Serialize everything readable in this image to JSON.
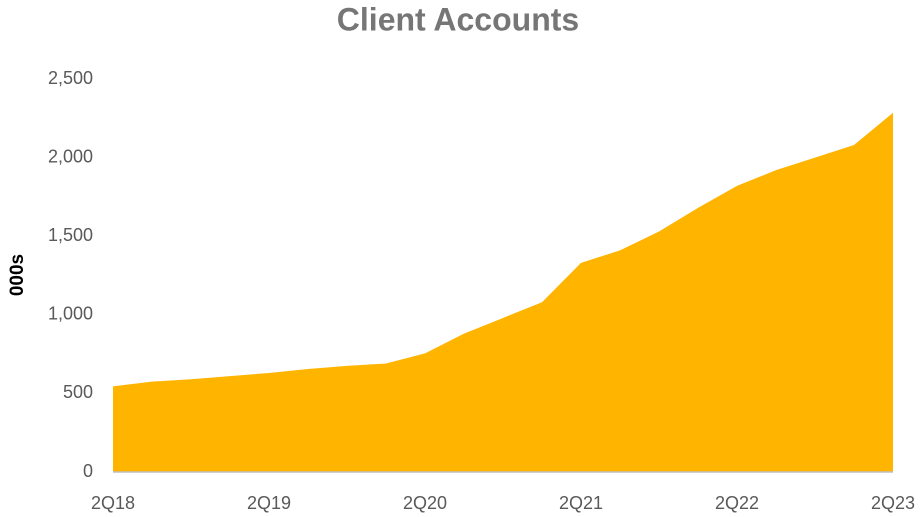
{
  "chart_data": {
    "type": "area",
    "title": "Client Accounts",
    "ylabel": "000s",
    "categories": [
      "2Q18",
      null,
      null,
      null,
      "2Q19",
      null,
      null,
      null,
      "2Q20",
      null,
      null,
      null,
      "2Q21",
      null,
      null,
      null,
      "2Q22",
      null,
      null,
      null,
      "2Q23"
    ],
    "values": [
      545,
      575,
      590,
      610,
      630,
      655,
      675,
      690,
      755,
      880,
      980,
      1080,
      1330,
      1410,
      1530,
      1680,
      1820,
      1920,
      2000,
      2080,
      2285
    ],
    "color": "#FFB400",
    "ylim": [
      0,
      2500
    ],
    "yticks": [
      0,
      500,
      {
        "value": 1000,
        "label": "1,000"
      },
      {
        "value": 1500,
        "label": "1,500"
      },
      {
        "value": 2000,
        "label": "2,000"
      },
      {
        "value": 2500,
        "label": "2,500"
      }
    ],
    "grid": false
  }
}
